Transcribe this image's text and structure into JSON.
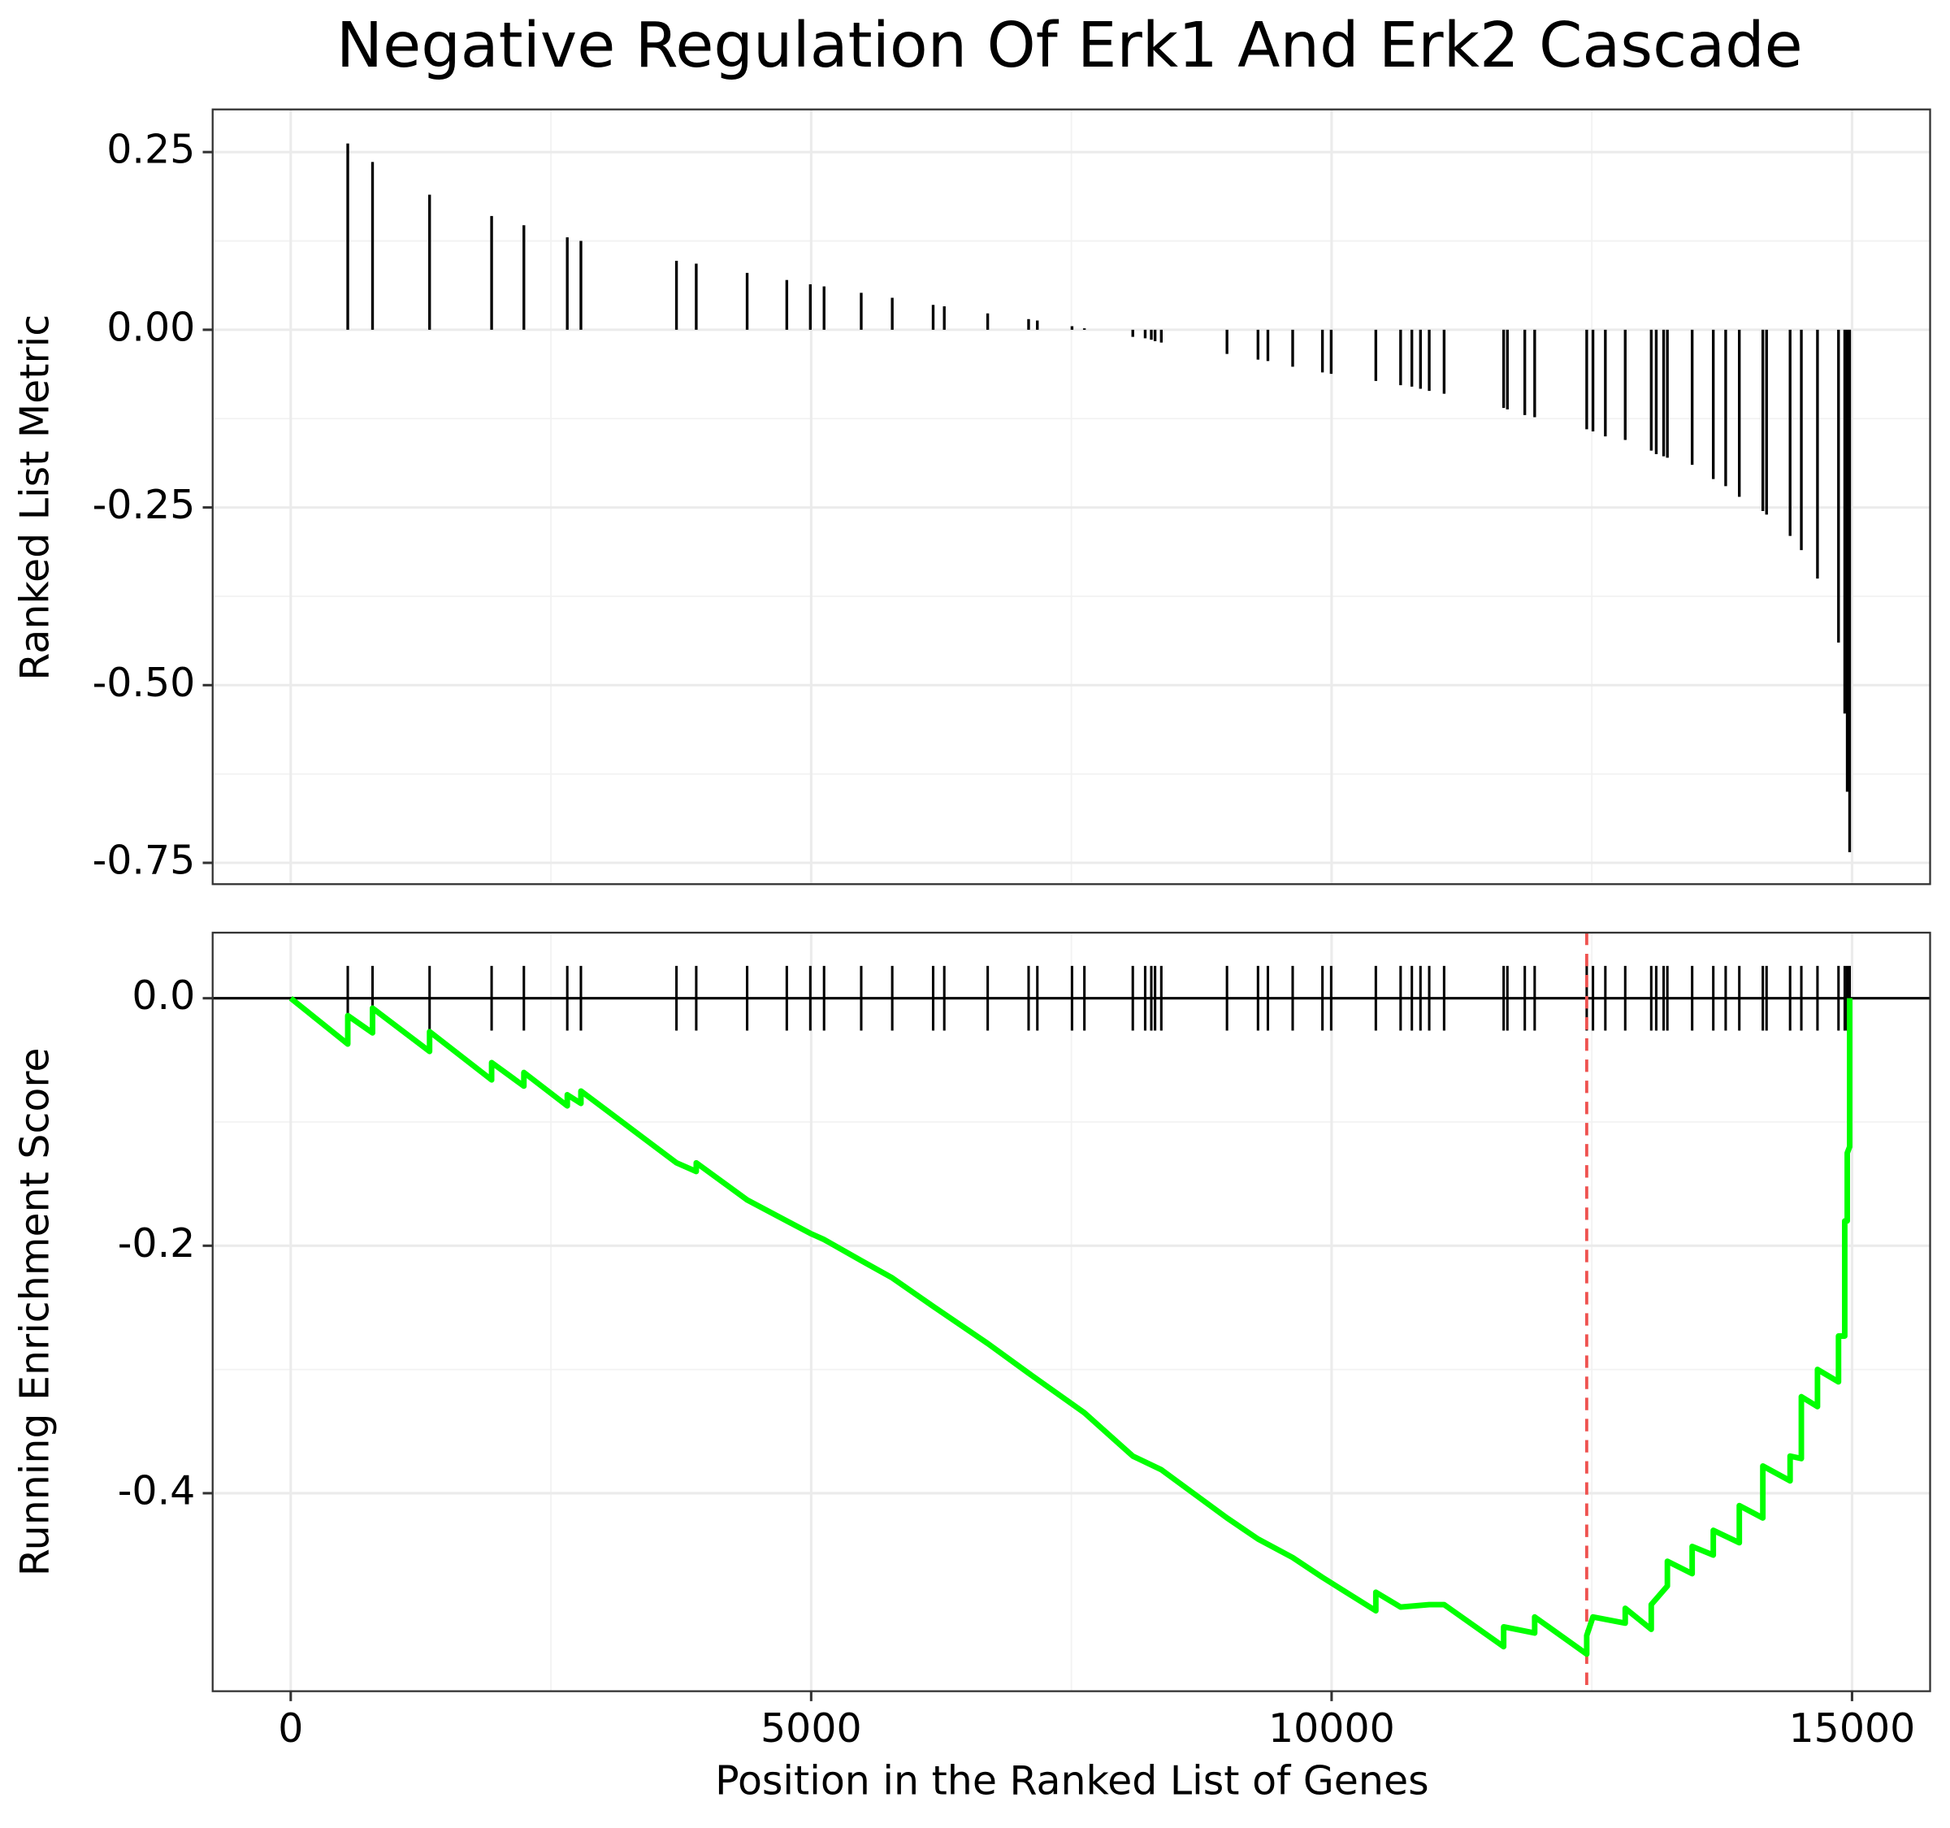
{
  "chart_data": [
    {
      "type": "bar",
      "title": "Negative Regulation Of Erk1 And Erk2 Cascade",
      "ylabel": "Ranked List Metric",
      "color": "#000000",
      "grid": true,
      "x": [
        548,
        786,
        1334,
        1930,
        2240,
        2657,
        2788,
        3706,
        3896,
        4385,
        4766,
        4992,
        5124,
        5481,
        5779,
        6172,
        6279,
        6696,
        7089,
        7173,
        7506,
        7625,
        8090,
        8209,
        8268,
        8304,
        8364,
        8995,
        9293,
        9388,
        9626,
        9912,
        9996,
        10425,
        10663,
        10771,
        10854,
        10938,
        11081,
        11653,
        11689,
        11856,
        11951,
        12451,
        12511,
        12630,
        12821,
        13071,
        13119,
        13190,
        13226,
        13464,
        13667,
        13786,
        13917,
        14143,
        14179,
        14405,
        14513,
        14668,
        14870,
        14930,
        14954,
        14977
      ],
      "values": [
        0.262,
        0.236,
        0.19,
        0.16,
        0.147,
        0.13,
        0.125,
        0.097,
        0.093,
        0.08,
        0.07,
        0.064,
        0.061,
        0.052,
        0.045,
        0.035,
        0.033,
        0.023,
        0.015,
        0.013,
        0.005,
        0.002,
        -0.01,
        -0.012,
        -0.014,
        -0.016,
        -0.018,
        -0.034,
        -0.042,
        -0.044,
        -0.052,
        -0.06,
        -0.062,
        -0.072,
        -0.078,
        -0.08,
        -0.083,
        -0.086,
        -0.09,
        -0.11,
        -0.112,
        -0.12,
        -0.123,
        -0.14,
        -0.143,
        -0.15,
        -0.155,
        -0.17,
        -0.175,
        -0.178,
        -0.18,
        -0.19,
        -0.21,
        -0.22,
        -0.235,
        -0.255,
        -0.26,
        -0.29,
        -0.31,
        -0.35,
        -0.44,
        -0.54,
        -0.65,
        -0.735
      ],
      "xlim": [
        -750,
        15750
      ],
      "xticks": [
        0,
        5000,
        10000,
        15000
      ],
      "ylim": [
        -0.78,
        0.31
      ],
      "yticks": [
        0.25,
        {
          "value": 0,
          "label": "0.00"
        },
        -0.25,
        {
          "value": -0.5,
          "label": "-0.50"
        },
        {
          "value": -0.75,
          "label": "-0.75"
        }
      ]
    },
    {
      "type": "line",
      "xlabel": "Position in the Ranked List of Genes",
      "ylabel": "Running Enrichment Score",
      "color": "#00ff00",
      "grid": true,
      "x": [
        0,
        548,
        548,
        786,
        786,
        1334,
        1334,
        1930,
        1930,
        2240,
        2240,
        2657,
        2657,
        2788,
        2788,
        3706,
        3896,
        3896,
        4385,
        4766,
        4992,
        5124,
        5481,
        5779,
        6172,
        6696,
        7089,
        7625,
        8090,
        8364,
        8995,
        9293,
        9626,
        9912,
        10425,
        10425,
        10663,
        10938,
        11081,
        11653,
        11653,
        11951,
        11951,
        12451,
        12451,
        12511,
        12821,
        12821,
        13071,
        13071,
        13226,
        13226,
        13464,
        13464,
        13667,
        13667,
        13917,
        13917,
        14143,
        14143,
        14405,
        14405,
        14513,
        14513,
        14668,
        14668,
        14870,
        14870,
        14930,
        14930,
        14954,
        14954,
        14977,
        14977
      ],
      "values": [
        0,
        -0.037,
        -0.014,
        -0.028,
        -0.008,
        -0.043,
        -0.027,
        -0.066,
        -0.052,
        -0.071,
        -0.06,
        -0.087,
        -0.078,
        -0.085,
        -0.075,
        -0.133,
        -0.14,
        -0.133,
        -0.163,
        -0.18,
        -0.19,
        -0.195,
        -0.212,
        -0.226,
        -0.249,
        -0.279,
        -0.303,
        -0.335,
        -0.37,
        -0.381,
        -0.42,
        -0.437,
        -0.452,
        -0.468,
        -0.495,
        -0.48,
        -0.492,
        -0.49,
        -0.49,
        -0.524,
        -0.508,
        -0.513,
        -0.5,
        -0.53,
        -0.515,
        -0.5,
        -0.505,
        -0.493,
        -0.51,
        -0.49,
        -0.475,
        -0.455,
        -0.465,
        -0.443,
        -0.45,
        -0.43,
        -0.44,
        -0.41,
        -0.42,
        -0.378,
        -0.39,
        -0.37,
        -0.372,
        -0.322,
        -0.33,
        -0.3,
        -0.31,
        -0.273,
        -0.273,
        -0.18,
        -0.18,
        -0.125,
        -0.12,
        0
      ],
      "vline": {
        "x": 12451,
        "color": "#ef5350"
      },
      "xlim": [
        -750,
        15750
      ],
      "xticks": [
        0,
        5000,
        10000,
        15000
      ],
      "ylim": [
        -0.56,
        0.053
      ],
      "yticks": [
        {
          "value": 0,
          "label": "0.0"
        },
        -0.2,
        -0.4
      ]
    }
  ]
}
